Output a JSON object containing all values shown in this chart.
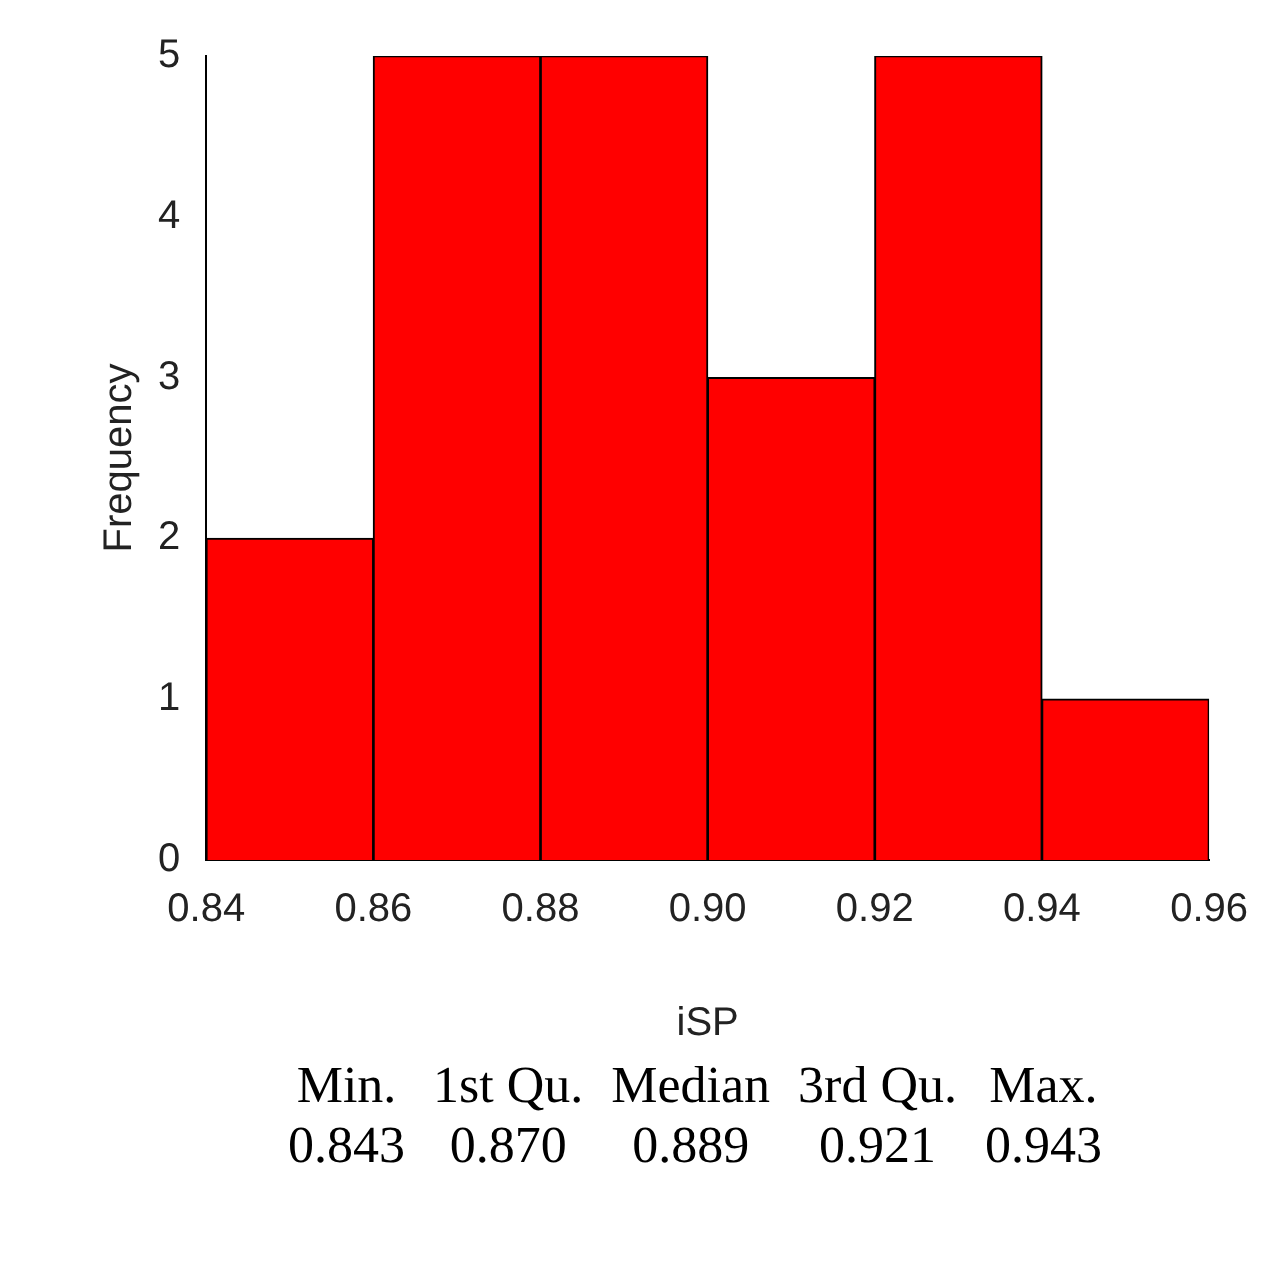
{
  "chart_data": {
    "type": "histogram",
    "xlabel": "iSP",
    "ylabel": "Frequency",
    "bins": [
      0.84,
      0.86,
      0.88,
      0.9,
      0.92,
      0.94,
      0.96
    ],
    "values": [
      2,
      5,
      5,
      3,
      5,
      1
    ],
    "color": "#ff0000",
    "xlim": [
      0.84,
      0.96
    ],
    "xticks": [
      0.84,
      0.86,
      0.88,
      {
        "value": 0.9,
        "label": "0.90"
      },
      0.92,
      0.94,
      0.96
    ],
    "ylim": [
      0,
      5
    ],
    "yticks": [
      0,
      1,
      2,
      3,
      4,
      5
    ],
    "grid": false,
    "legend": false,
    "annotations": [
      "Min.",
      "1st Qu.",
      "Median",
      "3rd Qu.",
      "Max.",
      "0.843",
      "0.870",
      "0.889",
      "0.921",
      "0.943"
    ]
  }
}
